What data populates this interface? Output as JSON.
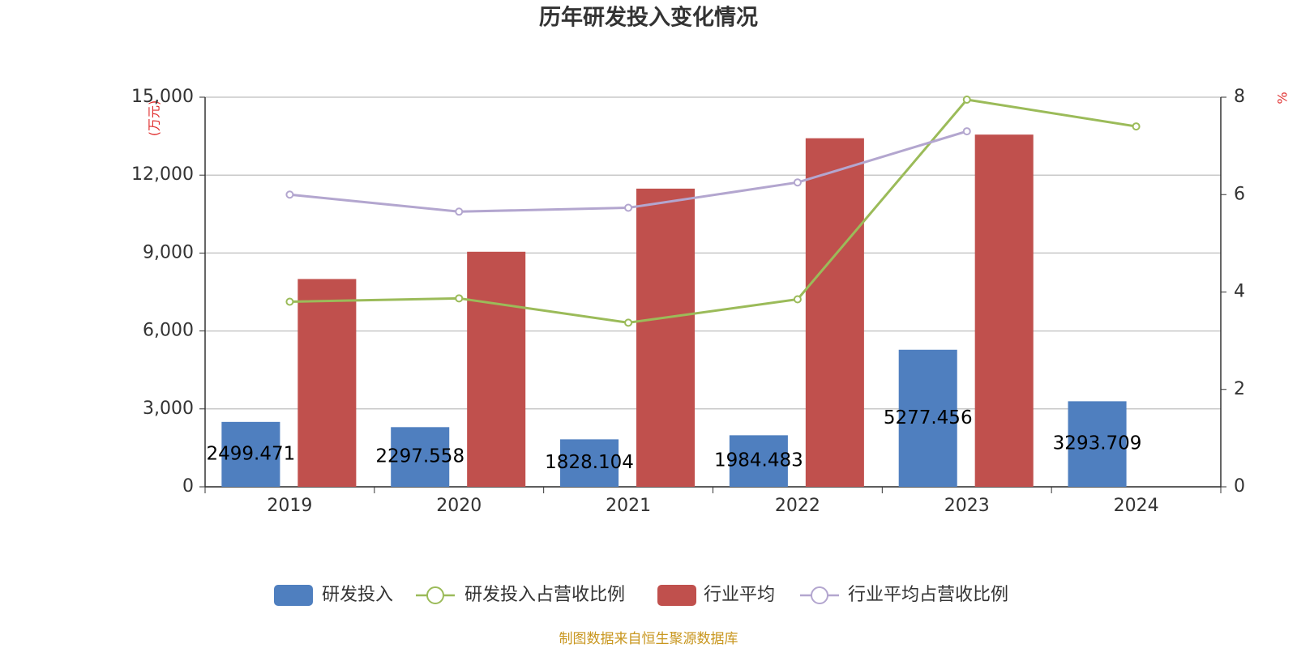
{
  "chart_data": {
    "type": "bar",
    "title": "历年研发投入变化情况",
    "y_unit": "(万元)",
    "y2_unit": "%",
    "source": "制图数据来自恒生聚源数据库",
    "categories": [
      "2019",
      "2020",
      "2021",
      "2022",
      "2023",
      "2024"
    ],
    "series": [
      {
        "name": "研发投入",
        "type": "bar",
        "color": "#4f7fbf",
        "values": [
          2499.471,
          2297.558,
          1828.104,
          1984.483,
          5277.456,
          3293.709
        ]
      },
      {
        "name": "研发投入占营收比例",
        "type": "line",
        "axis": "y2",
        "color": "#9bbb59",
        "values": [
          3.8,
          3.87,
          3.37,
          3.85,
          7.95,
          7.4
        ]
      },
      {
        "name": "行业平均",
        "type": "bar",
        "color": "#c0504d",
        "values": [
          8000,
          9050,
          11480,
          13420,
          13560,
          null
        ]
      },
      {
        "name": "行业平均占营收比例",
        "type": "line",
        "axis": "y2",
        "color": "#b3a6cf",
        "values": [
          6.0,
          5.65,
          5.73,
          6.25,
          7.3,
          null
        ]
      }
    ],
    "ylim": [
      0,
      15000
    ],
    "yticks": [
      0,
      {
        "value": 3000,
        "label": "3,000"
      },
      {
        "value": 6000,
        "label": "6,000"
      },
      {
        "value": 9000,
        "label": "9,000"
      },
      {
        "value": 12000,
        "label": "12,000"
      },
      {
        "value": 15000,
        "label": "15,000"
      }
    ],
    "y2lim": [
      0,
      8
    ],
    "y2ticks": [
      0,
      2,
      4,
      6,
      8
    ],
    "grid": true
  }
}
